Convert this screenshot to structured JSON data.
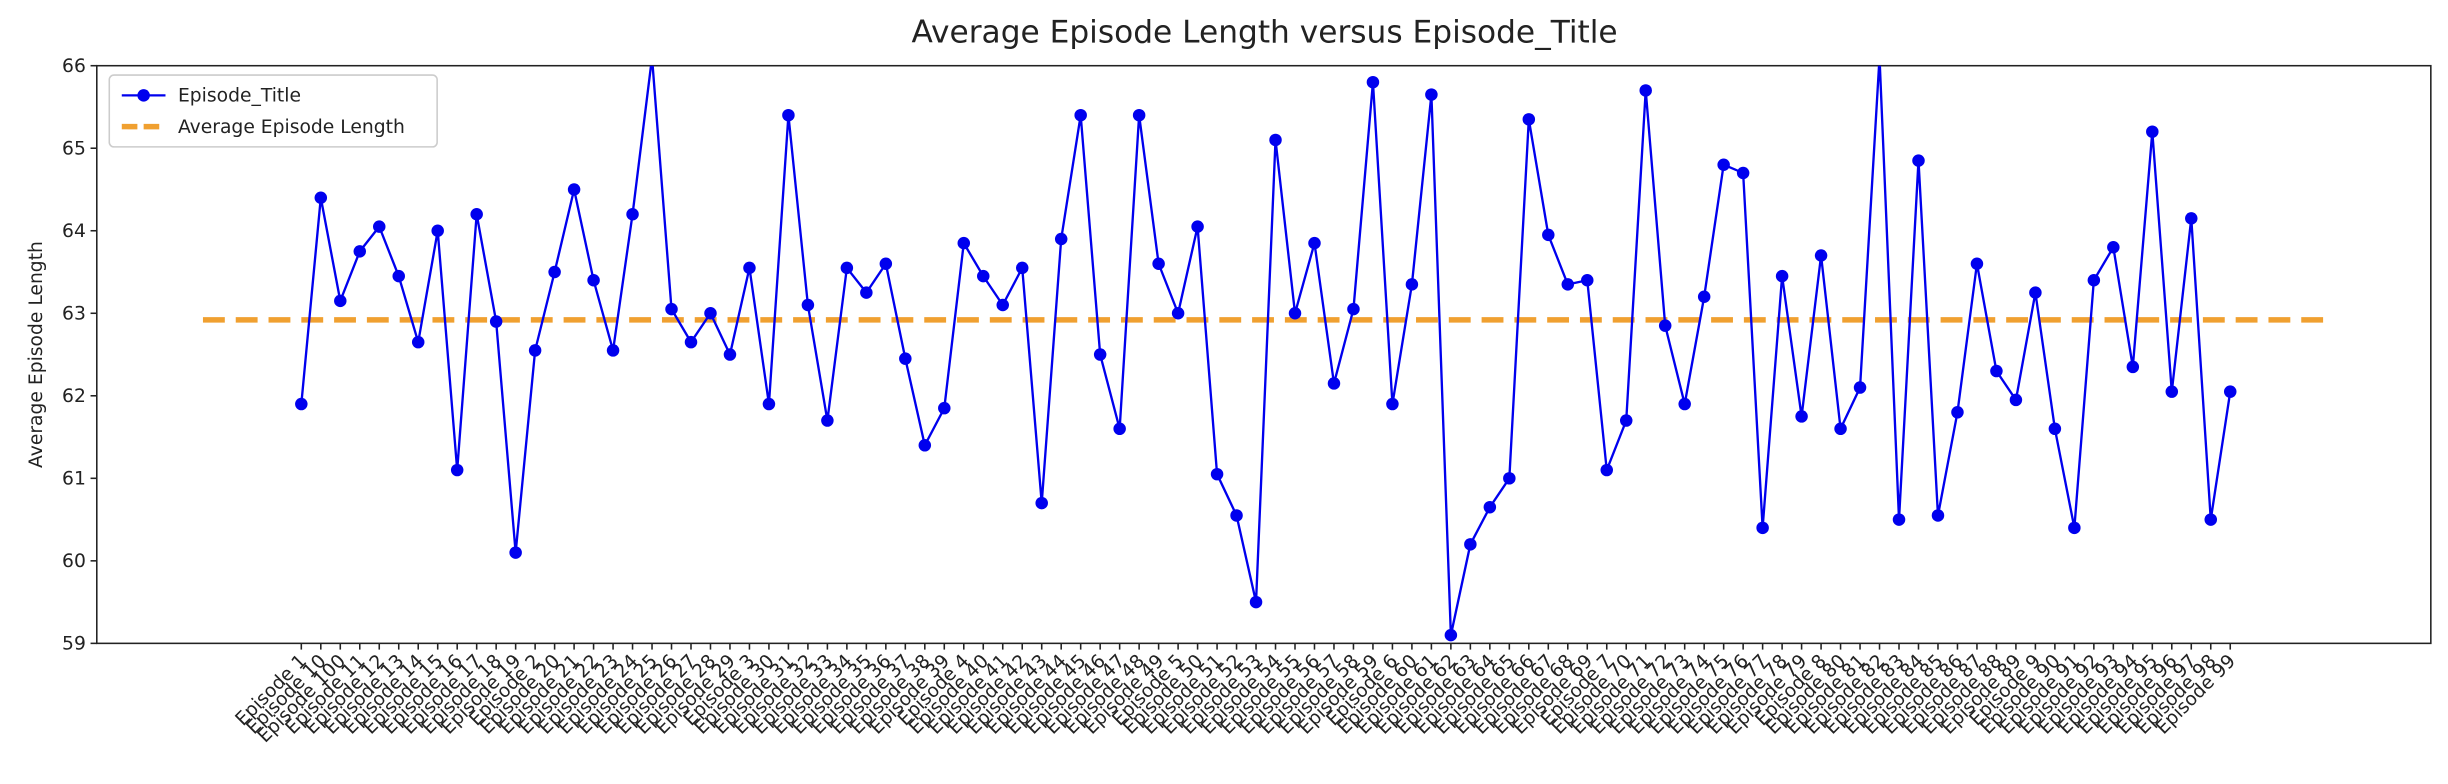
{
  "chart_data": {
    "type": "line",
    "title": "Average Episode Length versus Episode_Title",
    "y_label": "Average Episode Length",
    "categories": [
      "Episode 1",
      "Episode 10",
      "Episode 100",
      "Episode 11",
      "Episode 12",
      "Episode 13",
      "Episode 14",
      "Episode 15",
      "Episode 16",
      "Episode 17",
      "Episode 18",
      "Episode 19",
      "Episode 2",
      "Episode 20",
      "Episode 21",
      "Episode 22",
      "Episode 23",
      "Episode 24",
      "Episode 25",
      "Episode 26",
      "Episode 27",
      "Episode 28",
      "Episode 29",
      "Episode 3",
      "Episode 30",
      "Episode 31",
      "Episode 32",
      "Episode 33",
      "Episode 34",
      "Episode 35",
      "Episode 36",
      "Episode 37",
      "Episode 38",
      "Episode 39",
      "Episode 4",
      "Episode 40",
      "Episode 41",
      "Episode 42",
      "Episode 43",
      "Episode 44",
      "Episode 45",
      "Episode 46",
      "Episode 47",
      "Episode 48",
      "Episode 49",
      "Episode 5",
      "Episode 50",
      "Episode 51",
      "Episode 52",
      "Episode 53",
      "Episode 54",
      "Episode 55",
      "Episode 56",
      "Episode 57",
      "Episode 58",
      "Episode 59",
      "Episode 6",
      "Episode 60",
      "Episode 61",
      "Episode 62",
      "Episode 63",
      "Episode 64",
      "Episode 65",
      "Episode 66",
      "Episode 67",
      "Episode 68",
      "Episode 69",
      "Episode 7",
      "Episode 70",
      "Episode 71",
      "Episode 72",
      "Episode 73",
      "Episode 74",
      "Episode 75",
      "Episode 76",
      "Episode 77",
      "Episode 78",
      "Episode 79",
      "Episode 8",
      "Episode 80",
      "Episode 81",
      "Episode 82",
      "Episode 83",
      "Episode 84",
      "Episode 85",
      "Episode 86",
      "Episode 87",
      "Episode 88",
      "Episode 89",
      "Episode 9",
      "Episode 90",
      "Episode 91",
      "Episode 92",
      "Episode 93",
      "Episode 94",
      "Episode 95",
      "Episode 96",
      "Episode 97",
      "Episode 98",
      "Episode 99"
    ],
    "series": [
      {
        "name": "Episode_Title",
        "color": "#0000ee",
        "values": [
          61.9,
          64.4,
          63.15,
          63.75,
          64.05,
          63.45,
          62.65,
          64.0,
          61.1,
          64.2,
          62.9,
          60.1,
          62.55,
          63.5,
          64.5,
          63.4,
          62.55,
          64.2,
          66.1,
          63.05,
          62.65,
          63.0,
          62.5,
          63.55,
          61.9,
          65.4,
          63.1,
          61.7,
          63.55,
          63.25,
          63.6,
          62.45,
          61.4,
          61.85,
          63.85,
          63.45,
          63.1,
          63.55,
          60.7,
          63.9,
          65.4,
          62.5,
          61.6,
          65.4,
          63.6,
          63.0,
          64.05,
          61.05,
          60.55,
          59.5,
          65.1,
          63.0,
          63.85,
          62.15,
          63.05,
          65.8,
          61.9,
          63.35,
          65.65,
          59.1,
          60.2,
          60.65,
          61.0,
          65.35,
          63.95,
          63.35,
          63.4,
          61.1,
          61.7,
          65.7,
          62.85,
          61.9,
          63.2,
          64.8,
          64.7,
          60.4,
          63.45,
          61.75,
          63.7,
          61.6,
          62.1,
          66.1,
          60.5,
          64.85,
          60.55,
          61.8,
          63.6,
          62.3,
          61.95,
          63.25,
          61.6,
          60.4,
          63.4,
          63.8,
          62.35,
          65.2,
          62.05,
          64.15,
          60.5,
          62.05
        ]
      }
    ],
    "average": {
      "name": "Average Episode Length",
      "color": "#f0a030",
      "value": 62.92
    },
    "ylim": [
      59,
      66
    ],
    "yticks": [
      59,
      60,
      61,
      62,
      63,
      64,
      65,
      66
    ],
    "legend": "upper left"
  }
}
